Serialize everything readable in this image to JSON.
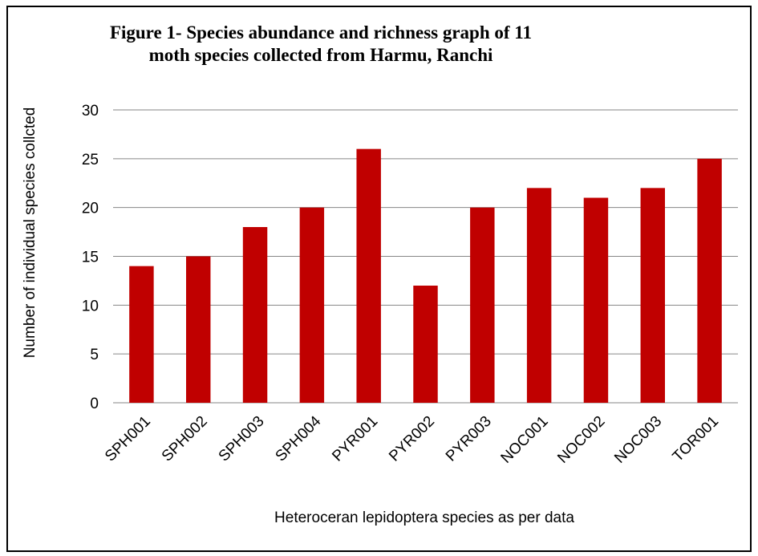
{
  "chart_data": {
    "type": "bar",
    "title_lines": [
      "Figure 1- Species abundance and richness graph of 11",
      "moth species collected from Harmu, Ranchi"
    ],
    "categories": [
      "SPH001",
      "SPH002",
      "SPH003",
      "SPH004",
      "PYR001",
      "PYR002",
      "PYR003",
      "NOC001",
      "NOC002",
      "NOC003",
      "TOR001"
    ],
    "values": [
      14,
      15,
      18,
      20,
      26,
      12,
      20,
      22,
      21,
      22,
      25
    ],
    "xlabel": "Heteroceran lepidoptera  species as per data",
    "ylabel": "Number of individual species collcted",
    "ylim": [
      0,
      30
    ],
    "yticks": [
      0,
      5,
      10,
      15,
      20,
      25,
      30
    ],
    "grid": true,
    "legend": "none",
    "bar_color": "#C00000",
    "grid_color": "#868686"
  }
}
